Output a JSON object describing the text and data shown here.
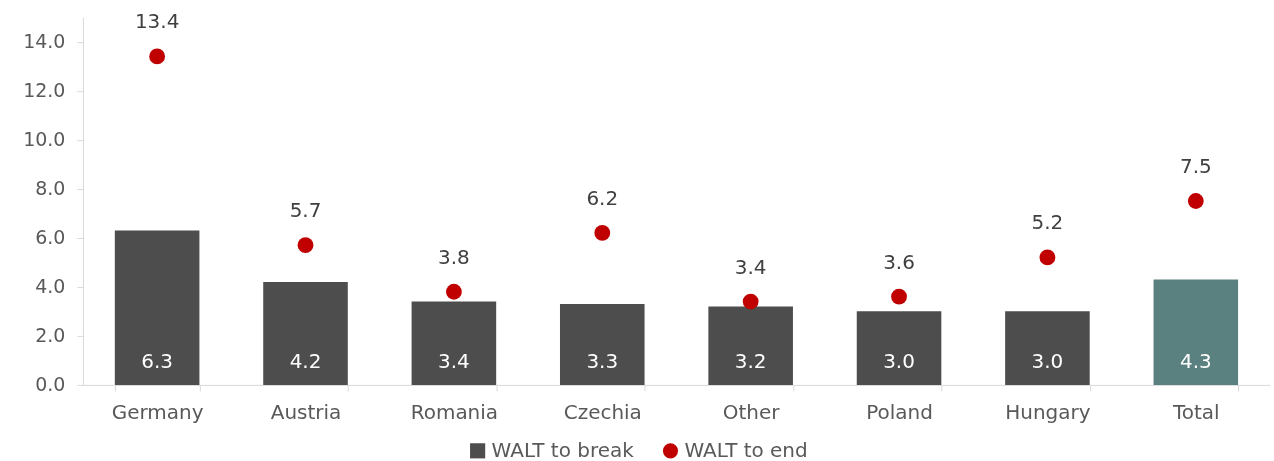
{
  "chart_data": {
    "type": "bar",
    "categories": [
      "Germany",
      "Austria",
      "Romania",
      "Czechia",
      "Other",
      "Poland",
      "Hungary",
      "Total"
    ],
    "series": [
      {
        "name": "WALT to break",
        "color": "#4d4d4d",
        "colors": [
          "#4d4d4d",
          "#4d4d4d",
          "#4d4d4d",
          "#4d4d4d",
          "#4d4d4d",
          "#4d4d4d",
          "#4d4d4d",
          "#5b8080"
        ],
        "values": [
          6.3,
          4.2,
          3.4,
          3.3,
          3.2,
          3.0,
          3.0,
          4.3
        ],
        "value_labels": [
          "6.3",
          "4.2",
          "3.4",
          "3.3",
          "3.2",
          "3.0",
          "3.0",
          "4.3"
        ]
      },
      {
        "name": "WALT to end",
        "type": "scatter",
        "color": "#c00000",
        "values": [
          13.4,
          5.7,
          3.8,
          6.2,
          3.4,
          3.6,
          5.2,
          7.5
        ],
        "value_labels": [
          "13.4",
          "5.7",
          "3.8",
          "6.2",
          "3.4",
          "3.6",
          "5.2",
          "7.5"
        ]
      }
    ],
    "ylim": [
      0,
      15
    ],
    "yticks": [
      {
        "value": 0,
        "label": "0.0"
      },
      {
        "value": 2,
        "label": "2.0"
      },
      {
        "value": 4,
        "label": "4.0"
      },
      {
        "value": 6,
        "label": "6.0"
      },
      {
        "value": 8,
        "label": "8.0"
      },
      {
        "value": 10,
        "label": "10.0"
      },
      {
        "value": 12,
        "label": "12.0"
      },
      {
        "value": 14,
        "label": "14.0"
      }
    ],
    "grid": false,
    "legend": "bottom",
    "marker": "circle"
  }
}
